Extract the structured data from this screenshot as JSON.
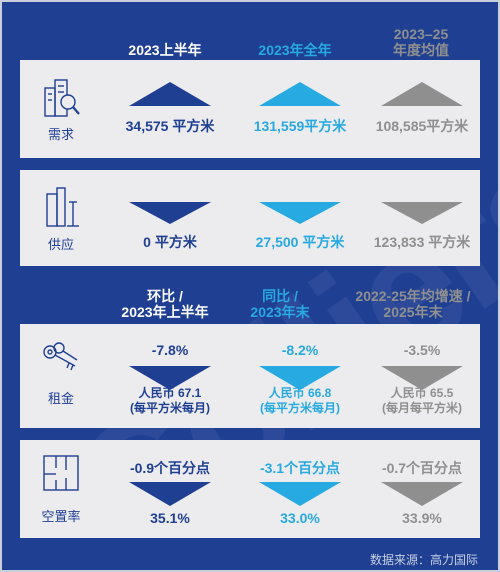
{
  "header1": {
    "col1": "2023上半年",
    "col2": "2023年全年",
    "col3_line1": "2023–25",
    "col3_line2": "年度均值"
  },
  "demand": {
    "label": "需求",
    "values": [
      "34,575 平方米",
      "131,559平方米",
      "108,585平方米"
    ]
  },
  "supply": {
    "label": "供应",
    "values": [
      "0 平方米",
      "27,500 平方米",
      "123,833 平方米"
    ]
  },
  "header2": {
    "col1_line1": "环比 /",
    "col1_line2": "2023年上半年",
    "col2_line1": "同比 /",
    "col2_line2": "2023年末",
    "col3_line1": "2022-25年均增速 /",
    "col3_line2": "2025年末"
  },
  "rent": {
    "label": "租金",
    "changes": [
      "-7.8%",
      "-8.2%",
      "-3.5%"
    ],
    "values_line1": [
      "人民币 67.1",
      "人民币 66.8",
      "人民币 65.5"
    ],
    "values_line2": [
      "(每平方米每月)",
      "(每平方米每月)",
      "(每月每平方米)"
    ]
  },
  "vacancy": {
    "label": "空置率",
    "changes": [
      "-0.9个百分点",
      "-3.1个百分点",
      "-0.7个百分点"
    ],
    "values": [
      "35.1%",
      "33.0%",
      "33.9%"
    ]
  },
  "colors": {
    "background": "#1f3f93",
    "navy": "#1f3f93",
    "cyan": "#27a9e1",
    "gray": "#8f8f8f",
    "panel": "#ececee"
  },
  "icons": [
    "building-search-icon",
    "building-icon",
    "keys-icon",
    "floor-plan-icon"
  ],
  "source": "数据来源：高力国际"
}
